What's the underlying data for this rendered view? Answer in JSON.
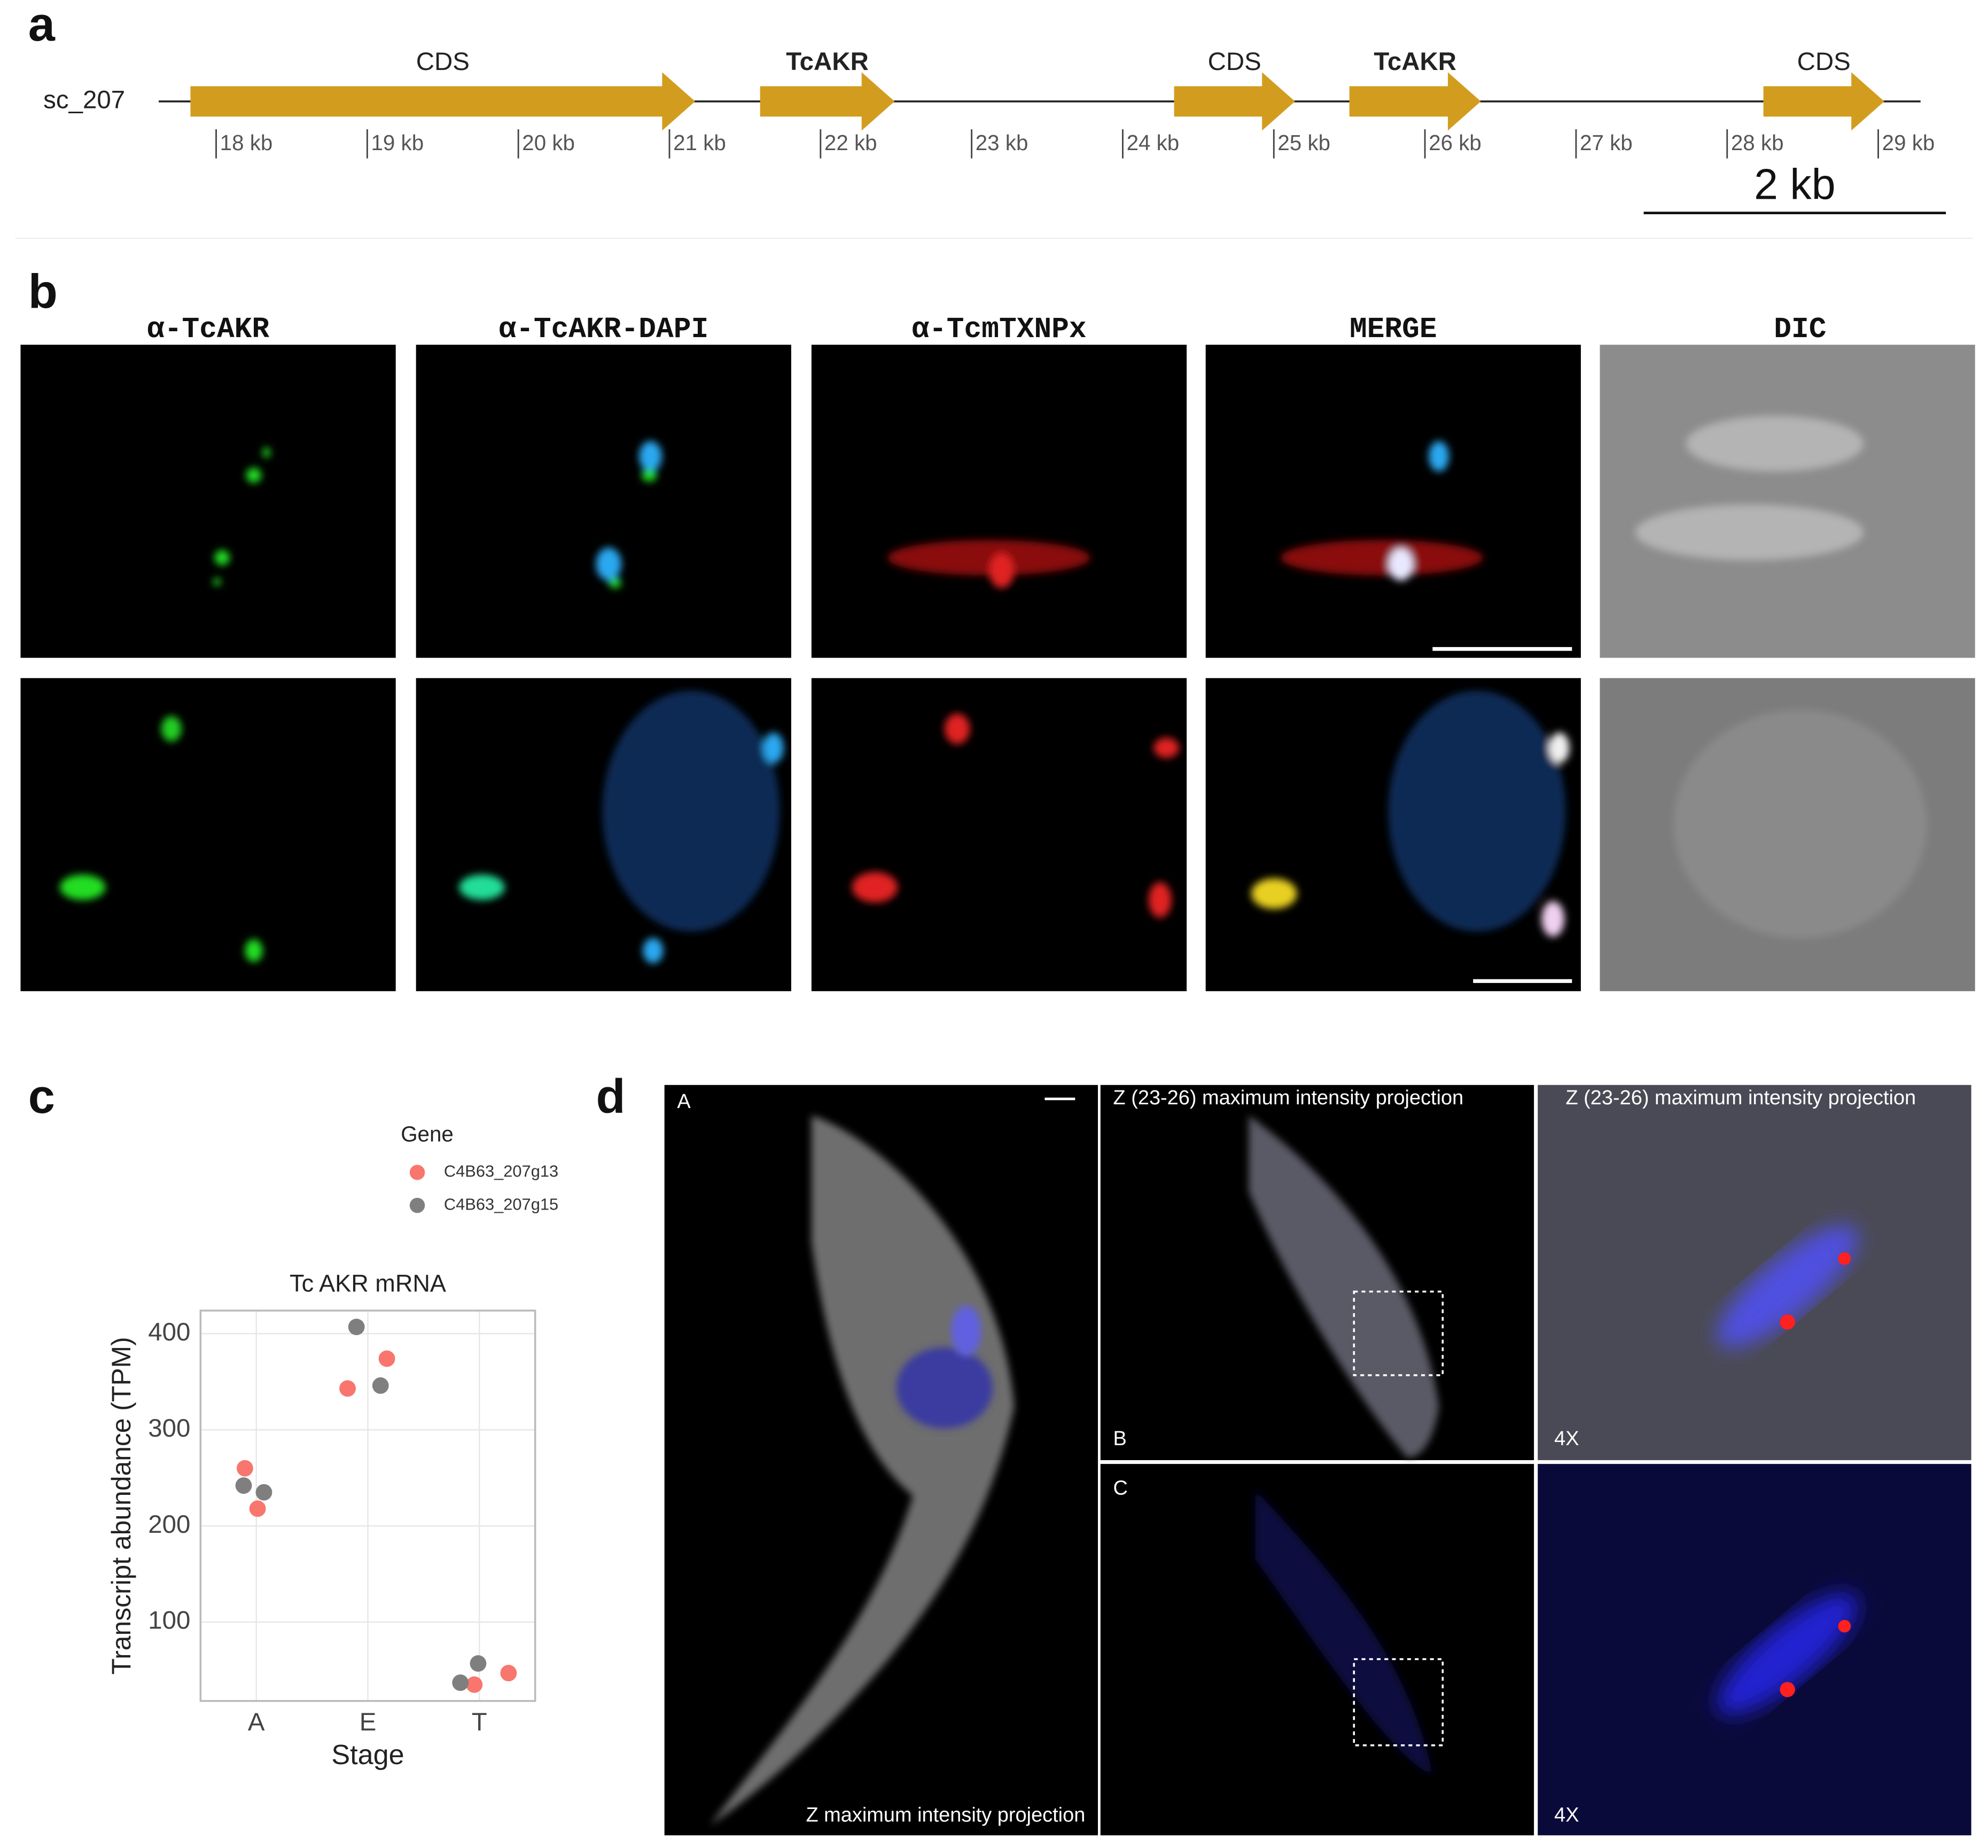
{
  "panel_labels": [
    "a",
    "b",
    "c",
    "d"
  ],
  "panel_a": {
    "contig": "sc_207",
    "color": "#d29d1e",
    "xlim": [
      17.62,
      29.28
    ],
    "xticks": [
      {
        "value": 18,
        "label": "18 kb"
      },
      {
        "value": 19,
        "label": "19 kb"
      },
      {
        "value": 20,
        "label": "20 kb"
      },
      {
        "value": 21,
        "label": "21 kb"
      },
      {
        "value": 22,
        "label": "22 kb"
      },
      {
        "value": 23,
        "label": "23 kb"
      },
      {
        "value": 24,
        "label": "24 kb"
      },
      {
        "value": 25,
        "label": "25 kb"
      },
      {
        "value": 26,
        "label": "26 kb"
      },
      {
        "value": 27,
        "label": "27 kb"
      },
      {
        "value": 28,
        "label": "28 kb"
      },
      {
        "value": 29,
        "label": "29 kb"
      }
    ],
    "features": [
      {
        "label": "CDS",
        "start": 17.83,
        "end": 21.17
      },
      {
        "label": "TcAKR",
        "start": 21.6,
        "end": 22.49
      },
      {
        "label": "CDS",
        "start": 24.34,
        "end": 25.14
      },
      {
        "label": "TcAKR",
        "start": 25.5,
        "end": 26.37
      },
      {
        "label": "CDS",
        "start": 28.24,
        "end": 29.04
      }
    ],
    "scale_bar": {
      "value": 2,
      "label": "2 kb"
    }
  },
  "panel_b": {
    "columns": [
      "α-TcAKR",
      "α-TcAKR-DAPI",
      "α-TcmTXNPx",
      "MERGE",
      "DIC"
    ]
  },
  "chart_data": {
    "type": "scatter",
    "title": "Tc AKR mRNA",
    "x_label": "Stage",
    "y_label": "Transcript abundance (TPM)",
    "categories": [
      "A",
      "E",
      "T"
    ],
    "legend_title": "Gene",
    "grid": true,
    "ylim": [
      18,
      424
    ],
    "yticks": [
      100,
      200,
      300,
      400
    ],
    "series": [
      {
        "name": "C4B63_207g13",
        "color": "#f8766d",
        "x": [
          "A",
          "A",
          "E",
          "E",
          "T",
          "T"
        ],
        "values": [
          260,
          218,
          343,
          374,
          35,
          47
        ]
      },
      {
        "name": "C4B63_207g15",
        "color": "#7f7f7f",
        "x": [
          "A",
          "A",
          "E",
          "E",
          "T",
          "T"
        ],
        "values": [
          242,
          235,
          407,
          346,
          37,
          57
        ]
      }
    ]
  },
  "panel_d": {
    "images": [
      {
        "label": "A",
        "caption": "Z maximum intensity projection"
      },
      {
        "label": "B",
        "title": "Z (23-26) maximum intensity projection"
      },
      {
        "title": "Z (23-26) maximum intensity projection",
        "zoom": "4X"
      },
      {
        "label": "C"
      },
      {
        "zoom": "4X"
      }
    ]
  }
}
